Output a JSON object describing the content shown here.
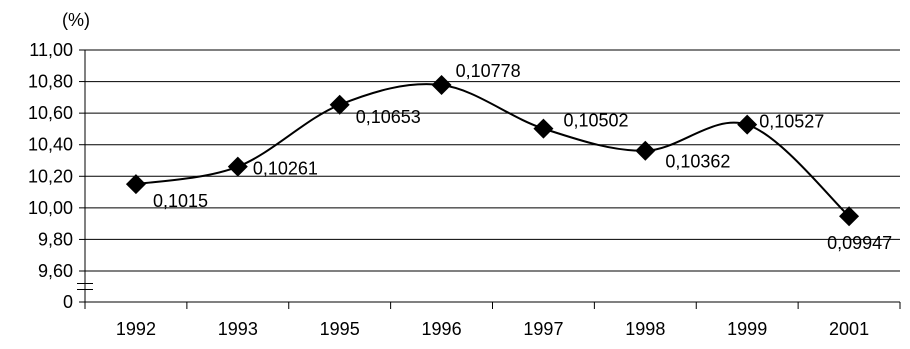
{
  "chart_data": {
    "type": "line",
    "title": "",
    "xlabel": "",
    "ylabel": "(%)",
    "categories": [
      "1992",
      "1993",
      "1995",
      "1996",
      "1997",
      "1998",
      "1999",
      "2001"
    ],
    "series": [
      {
        "values": [
          10.15,
          10.261,
          10.653,
          10.778,
          10.502,
          10.362,
          10.527,
          9.947
        ],
        "data_labels": [
          "0,1015",
          "0,10261",
          "0,10653",
          "0,10778",
          "0,10502",
          "0,10362",
          "0,10527",
          "0,09947"
        ],
        "marker": "diamond",
        "smooth": true,
        "color": "#000000"
      }
    ],
    "y_ticks": [
      {
        "value": 11.0,
        "label": "11,00"
      },
      {
        "value": 10.8,
        "label": "10,80"
      },
      {
        "value": 10.6,
        "label": "10,60"
      },
      {
        "value": 10.4,
        "label": "10,40"
      },
      {
        "value": 10.2,
        "label": "10,20"
      },
      {
        "value": 10.0,
        "label": "10,00"
      },
      {
        "value": 9.8,
        "label": "9,80"
      },
      {
        "value": 9.6,
        "label": "9,60"
      },
      {
        "value": 0,
        "label": "0"
      }
    ],
    "ylim": [
      9.4,
      11.0
    ],
    "y_axis_break": true,
    "grid": true,
    "legend": "none"
  }
}
